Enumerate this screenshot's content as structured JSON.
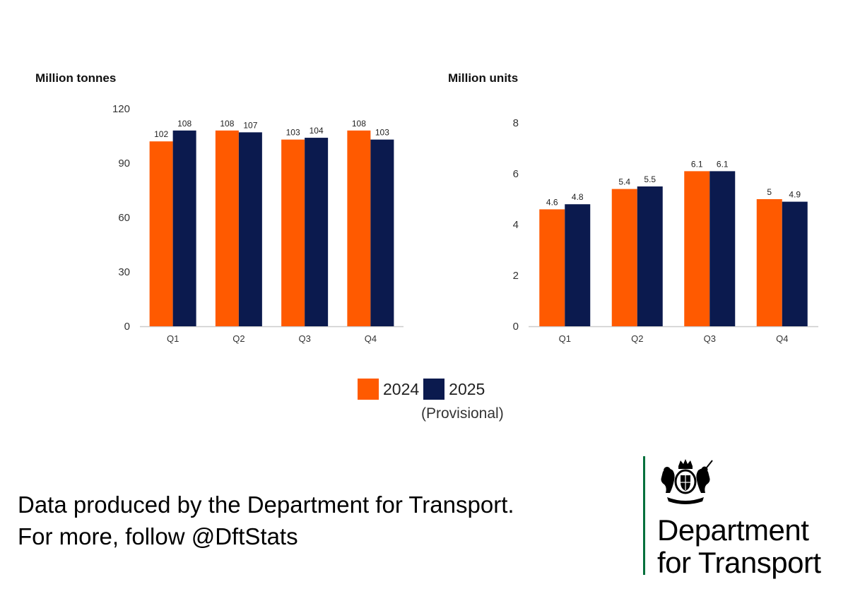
{
  "chart_data": [
    {
      "type": "bar",
      "ylabel": "Million tonnes",
      "categories": [
        "Q1",
        "Q2",
        "Q3",
        "Q4"
      ],
      "ylim": [
        0,
        120
      ],
      "yticks": [
        "0",
        "30",
        "60",
        "90",
        "120"
      ],
      "series": [
        {
          "name": "2024",
          "color": "#ff5a00",
          "values": [
            102,
            108,
            103,
            108
          ]
        },
        {
          "name": "2025",
          "color": "#0b1a4e",
          "values": [
            108,
            107,
            104,
            103
          ]
        }
      ]
    },
    {
      "type": "bar",
      "ylabel": "Million units",
      "categories": [
        "Q1",
        "Q2",
        "Q3",
        "Q4"
      ],
      "ylim": [
        0,
        8
      ],
      "yticks": [
        "0",
        "2",
        "4",
        "6",
        "8"
      ],
      "series": [
        {
          "name": "2024",
          "color": "#ff5a00",
          "values": [
            4.6,
            5.4,
            6.1,
            5
          ]
        },
        {
          "name": "2025",
          "color": "#0b1a4e",
          "values": [
            4.8,
            5.5,
            6.1,
            4.9
          ]
        }
      ]
    }
  ],
  "legend": {
    "items": [
      {
        "label": "2024",
        "color": "#ff5a00"
      },
      {
        "label": "2025",
        "color": "#0b1a4e"
      }
    ],
    "note": "(Provisional)"
  },
  "footer": {
    "line1": "Data produced by the Department for Transport.",
    "line2": "For more, follow @DftStats"
  },
  "branding": {
    "line1": "Department",
    "line2": "for Transport",
    "accent": "#00703c"
  }
}
